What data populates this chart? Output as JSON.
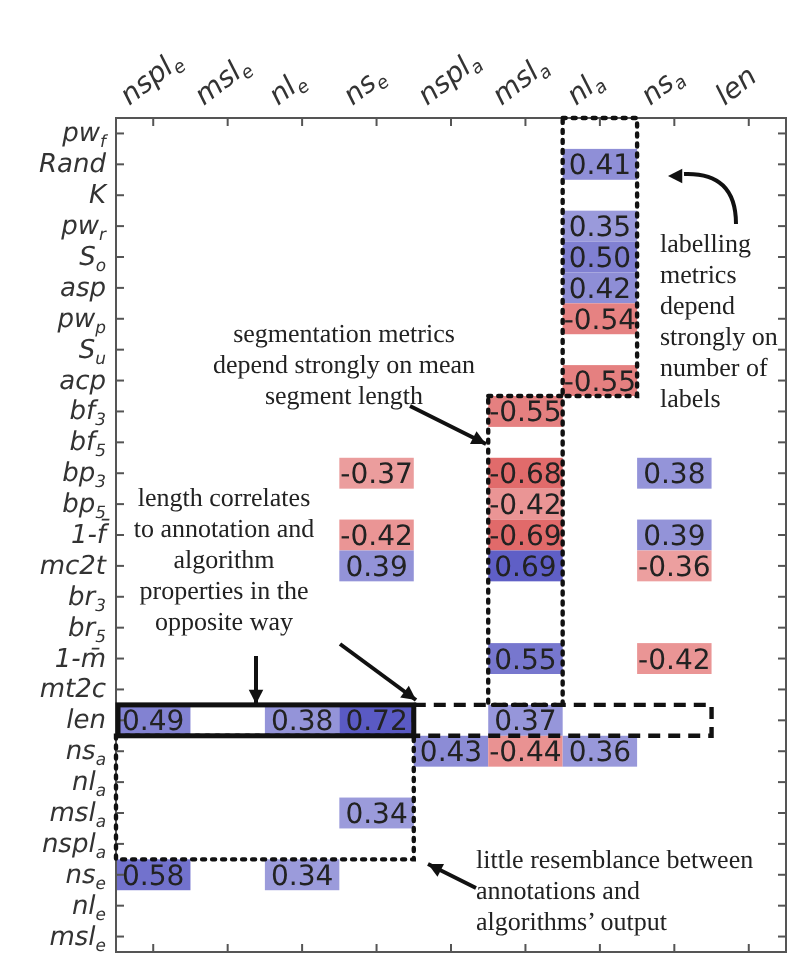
{
  "chart_data": {
    "type": "heatmap",
    "categories": [
      "nspl$_{e}$",
      "msl$_{e}$",
      "nl$_{e}$",
      "ns$_{e}$",
      "nspl$_{a}$",
      "msl$_{a}$",
      "nl$_{a}$",
      "ns$_{a}$",
      "len"
    ],
    "y_categories": [
      "pw$_{f}$",
      "Rand",
      "K",
      "pw$_{r}$",
      "S$_{o}$",
      "asp",
      "pw$_{p}$",
      "S$_{u}$",
      "acp",
      "bf$_{3}$",
      "bf$_{5}$",
      "bp$_{3}$",
      "bp$_{5}$",
      "1-f̄",
      "mc2t",
      "br$_{3}$",
      "br$_{5}$",
      "1-m̄",
      "mt2c",
      "len",
      "ns$_{a}$",
      "nl$_{a}$",
      "msl$_{a}$",
      "nspl$_{a}$",
      "ns$_{e}$",
      "nl$_{e}$",
      "msl$_{e}$"
    ],
    "cells": [
      [
        null,
        null,
        null,
        null,
        null,
        null,
        null,
        null,
        null
      ],
      [
        null,
        null,
        null,
        null,
        null,
        null,
        0.41,
        null,
        null
      ],
      [
        null,
        null,
        null,
        null,
        null,
        null,
        null,
        null,
        null
      ],
      [
        null,
        null,
        null,
        null,
        null,
        null,
        0.35,
        null,
        null
      ],
      [
        null,
        null,
        null,
        null,
        null,
        null,
        0.5,
        null,
        null
      ],
      [
        null,
        null,
        null,
        null,
        null,
        null,
        0.42,
        null,
        null
      ],
      [
        null,
        null,
        null,
        null,
        null,
        null,
        -0.54,
        null,
        null
      ],
      [
        null,
        null,
        null,
        null,
        null,
        null,
        null,
        null,
        null
      ],
      [
        null,
        null,
        null,
        null,
        null,
        null,
        -0.55,
        null,
        null
      ],
      [
        null,
        null,
        null,
        null,
        null,
        -0.55,
        null,
        null,
        null
      ],
      [
        null,
        null,
        null,
        null,
        null,
        null,
        null,
        null,
        null
      ],
      [
        null,
        null,
        null,
        -0.37,
        null,
        -0.68,
        null,
        0.38,
        null
      ],
      [
        null,
        null,
        null,
        null,
        null,
        -0.42,
        null,
        null,
        null
      ],
      [
        null,
        null,
        null,
        -0.42,
        null,
        -0.69,
        null,
        0.39,
        null
      ],
      [
        null,
        null,
        null,
        0.39,
        null,
        0.69,
        null,
        -0.36,
        null
      ],
      [
        null,
        null,
        null,
        null,
        null,
        null,
        null,
        null,
        null
      ],
      [
        null,
        null,
        null,
        null,
        null,
        null,
        null,
        null,
        null
      ],
      [
        null,
        null,
        null,
        null,
        null,
        0.55,
        null,
        -0.42,
        null
      ],
      [
        null,
        null,
        null,
        null,
        null,
        null,
        null,
        null,
        null
      ],
      [
        0.49,
        null,
        0.38,
        0.72,
        null,
        0.37,
        null,
        null,
        null
      ],
      [
        null,
        null,
        null,
        null,
        0.43,
        -0.44,
        0.36,
        null,
        null
      ],
      [
        null,
        null,
        null,
        null,
        null,
        null,
        null,
        null,
        null
      ],
      [
        null,
        null,
        null,
        0.34,
        null,
        null,
        null,
        null,
        null
      ],
      [
        null,
        null,
        null,
        null,
        null,
        null,
        null,
        null,
        null
      ],
      [
        0.58,
        null,
        0.34,
        null,
        null,
        null,
        null,
        null,
        null
      ],
      [
        null,
        null,
        null,
        null,
        null,
        null,
        null,
        null,
        null
      ],
      [
        null,
        null,
        null,
        null,
        null,
        null,
        null,
        null,
        null
      ]
    ],
    "cell_labels": [
      [
        null,
        null,
        null,
        null,
        null,
        null,
        null,
        null,
        null
      ],
      [
        null,
        null,
        null,
        null,
        null,
        null,
        "0.41",
        null,
        null
      ],
      [
        null,
        null,
        null,
        null,
        null,
        null,
        null,
        null,
        null
      ],
      [
        null,
        null,
        null,
        null,
        null,
        null,
        "0.35",
        null,
        null
      ],
      [
        null,
        null,
        null,
        null,
        null,
        null,
        "0.50",
        null,
        null
      ],
      [
        null,
        null,
        null,
        null,
        null,
        null,
        "0.42",
        null,
        null
      ],
      [
        null,
        null,
        null,
        null,
        null,
        null,
        "-0.54",
        null,
        null
      ],
      [
        null,
        null,
        null,
        null,
        null,
        null,
        null,
        null,
        null
      ],
      [
        null,
        null,
        null,
        null,
        null,
        null,
        "-0.55",
        null,
        null
      ],
      [
        null,
        null,
        null,
        null,
        null,
        "-0.55",
        null,
        null,
        null
      ],
      [
        null,
        null,
        null,
        null,
        null,
        null,
        null,
        null,
        null
      ],
      [
        null,
        null,
        null,
        "-0.37",
        null,
        "-0.68",
        null,
        "0.38",
        null
      ],
      [
        null,
        null,
        null,
        null,
        null,
        "-0.42",
        null,
        null,
        null
      ],
      [
        null,
        null,
        null,
        "-0.42",
        null,
        "-0.69",
        null,
        "0.39",
        null
      ],
      [
        null,
        null,
        null,
        "0.39",
        null,
        "0.69",
        null,
        "-0.36",
        null
      ],
      [
        null,
        null,
        null,
        null,
        null,
        null,
        null,
        null,
        null
      ],
      [
        null,
        null,
        null,
        null,
        null,
        null,
        null,
        null,
        null
      ],
      [
        null,
        null,
        null,
        null,
        null,
        "0.55",
        null,
        "-0.42",
        null
      ],
      [
        null,
        null,
        null,
        null,
        null,
        null,
        null,
        null,
        null
      ],
      [
        "0.49",
        null,
        "0.38",
        "0.72",
        null,
        "0.37",
        null,
        null,
        null
      ],
      [
        null,
        null,
        null,
        null,
        "0.43",
        "-0.44",
        "0.36",
        null,
        null
      ],
      [
        null,
        null,
        null,
        null,
        null,
        null,
        null,
        null,
        null
      ],
      [
        null,
        null,
        null,
        "0.34",
        null,
        null,
        null,
        null,
        null
      ],
      [
        null,
        null,
        null,
        null,
        null,
        null,
        null,
        null,
        null
      ],
      [
        "0.58",
        null,
        "0.34",
        null,
        null,
        null,
        null,
        null,
        null
      ],
      [
        null,
        null,
        null,
        null,
        null,
        null,
        null,
        null,
        null
      ],
      [
        null,
        null,
        null,
        null,
        null,
        null,
        null,
        null,
        null
      ]
    ],
    "annotations": [
      "segmentation metrics depend strongly on mean segment length",
      "labelling metrics depend strongly on number of labels",
      "length correlates to annotation and algorithm properties in the opposite way",
      "little resemblance between annotations and algorithms’ output"
    ],
    "grid": false
  }
}
